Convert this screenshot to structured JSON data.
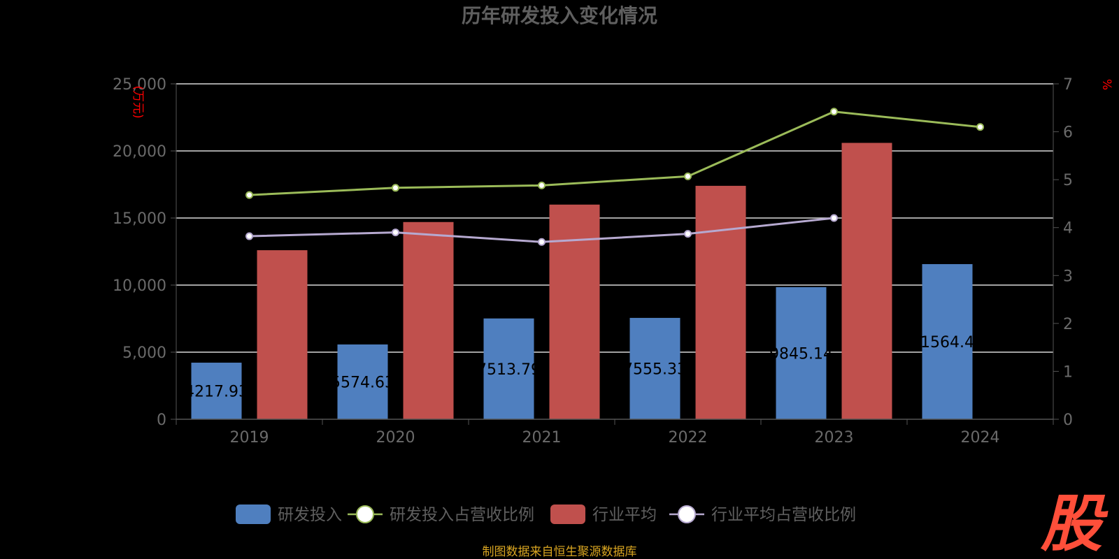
{
  "chart_data": {
    "type": "bar",
    "title": "历年研发投入变化情况",
    "categories": [
      "2019",
      "2020",
      "2021",
      "2022",
      "2023",
      "2024"
    ],
    "y_left": {
      "unit": "(万元)",
      "ylim": [
        0,
        25000
      ],
      "ticks": [
        "0",
        "5,000",
        "10,000",
        "15,000",
        "20,000",
        "25,000"
      ]
    },
    "y_right": {
      "unit": "%",
      "ylim": [
        0,
        7
      ],
      "ticks": [
        "0",
        "1",
        "2",
        "3",
        "4",
        "5",
        "6",
        "7"
      ]
    },
    "series": [
      {
        "name": "研发投入",
        "type": "bar",
        "axis": "left",
        "color": "#4f7fbf",
        "values": [
          4217.93,
          5574.63,
          7513.79,
          7555.33,
          9845.14,
          11564.45
        ],
        "labels": [
          "4217.93",
          "5574.63",
          "7513.79",
          "7555.33",
          "9845.14",
          "11564.45"
        ]
      },
      {
        "name": "研发投入占营收比例",
        "type": "line",
        "axis": "right",
        "color": "#9bbb59",
        "values": [
          4.68,
          4.83,
          4.88,
          5.07,
          6.42,
          6.1
        ]
      },
      {
        "name": "行业平均",
        "type": "bar",
        "axis": "left",
        "color": "#c0504d",
        "values": [
          12600,
          14700,
          16000,
          17400,
          20600,
          null
        ]
      },
      {
        "name": "行业平均占营收比例",
        "type": "line",
        "axis": "right",
        "color": "#b6a9d0",
        "values": [
          3.82,
          3.9,
          3.7,
          3.87,
          4.2,
          null
        ]
      }
    ],
    "grid": true,
    "legend_position": "bottom"
  },
  "footer": {
    "source": "制图数据来自恒生聚源数据库"
  },
  "logo": {
    "text": "股"
  }
}
